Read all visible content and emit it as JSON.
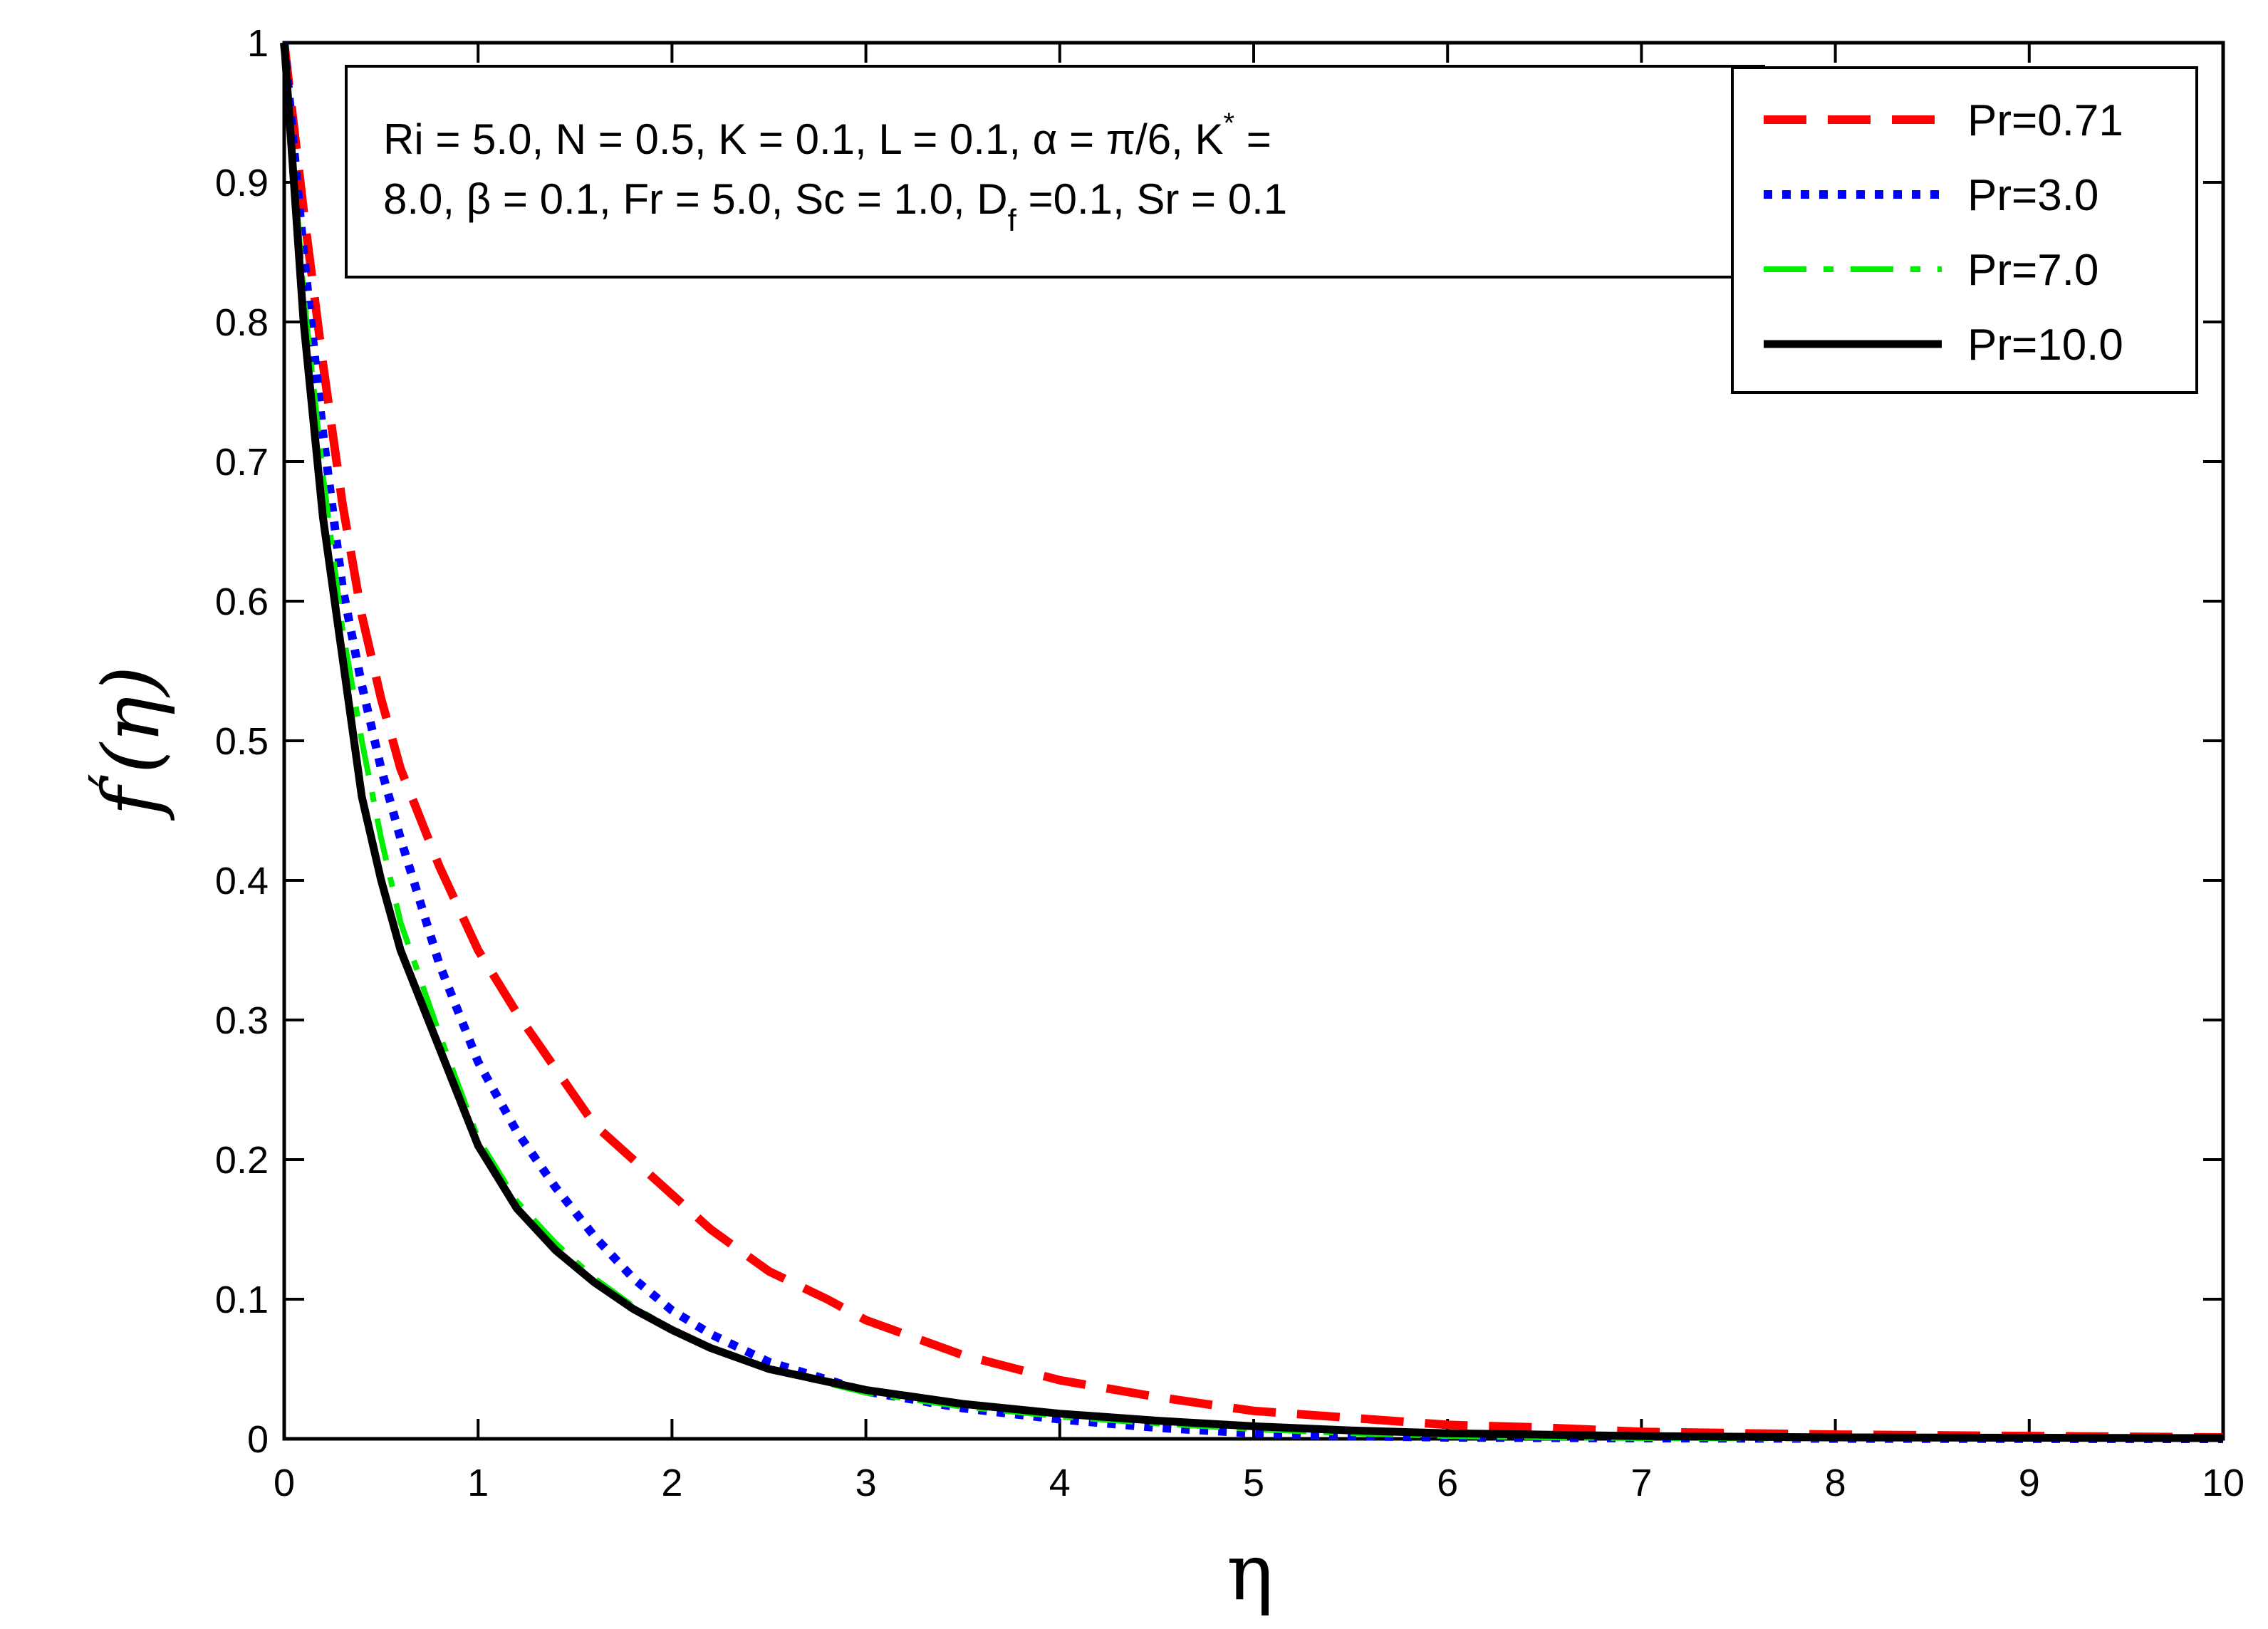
{
  "chart_data": {
    "type": "line",
    "title": "",
    "xlabel": "η",
    "ylabel_main": "f",
    "ylabel_prime": "′",
    "ylabel_arg": "(η)",
    "xlim": [
      0,
      10
    ],
    "ylim": [
      0,
      1
    ],
    "x_ticks": [
      0,
      1,
      2,
      3,
      4,
      5,
      6,
      7,
      8,
      9,
      10
    ],
    "x_tick_labels": [
      "0",
      "1",
      "2",
      "3",
      "4",
      "5",
      "6",
      "7",
      "8",
      "9",
      "10"
    ],
    "y_ticks": [
      0,
      0.1,
      0.2,
      0.3,
      0.4,
      0.5,
      0.6,
      0.7,
      0.8,
      0.9,
      1
    ],
    "y_tick_labels": [
      "0",
      "0.1",
      "0.2",
      "0.3",
      "0.4",
      "0.5",
      "0.6",
      "0.7",
      "0.8",
      "0.9",
      "1"
    ],
    "grid": false,
    "legend_position": "top-right",
    "annotation": {
      "line1": "Ri = 5.0, N = 0.5, K = 0.1, L = 0.1, α = π/6, K",
      "line1_sup": "*",
      "line1_end": " =",
      "line2": "8.0, β = 0.1, Fr = 5.0, Sc = 1.0, D",
      "line2_sub": "f",
      "line2_end": " =0.1, Sr = 0.1"
    },
    "series": [
      {
        "name": "Pr=0.71",
        "color": "#ff0000",
        "style": "dashed",
        "x": [
          0,
          0.1,
          0.2,
          0.3,
          0.4,
          0.5,
          0.6,
          0.8,
          1.0,
          1.2,
          1.4,
          1.6,
          1.8,
          2.0,
          2.2,
          2.5,
          2.8,
          3.0,
          3.5,
          4.0,
          4.5,
          5.0,
          5.5,
          6.0,
          6.5,
          7.0,
          7.5,
          8.0,
          9.0,
          10.0
        ],
        "y": [
          1.0,
          0.88,
          0.77,
          0.67,
          0.59,
          0.53,
          0.48,
          0.41,
          0.35,
          0.305,
          0.265,
          0.225,
          0.2,
          0.175,
          0.15,
          0.12,
          0.1,
          0.085,
          0.06,
          0.042,
          0.03,
          0.02,
          0.015,
          0.01,
          0.008,
          0.005,
          0.004,
          0.003,
          0.002,
          0.001
        ]
      },
      {
        "name": "Pr=3.0",
        "color": "#0000ff",
        "style": "dotted",
        "x": [
          0,
          0.1,
          0.2,
          0.3,
          0.4,
          0.5,
          0.6,
          0.8,
          1.0,
          1.2,
          1.4,
          1.6,
          1.8,
          2.0,
          2.2,
          2.5,
          3.0,
          3.5,
          4.0,
          4.5,
          5.0,
          5.5,
          6.0,
          7.0,
          8.0,
          10.0
        ],
        "y": [
          1.0,
          0.85,
          0.72,
          0.61,
          0.54,
          0.48,
          0.43,
          0.34,
          0.27,
          0.22,
          0.18,
          0.145,
          0.115,
          0.092,
          0.075,
          0.055,
          0.034,
          0.022,
          0.014,
          0.008,
          0.004,
          0.002,
          0.001,
          0.0005,
          0.0002,
          0.0
        ]
      },
      {
        "name": "Pr=7.0",
        "color": "#00ee00",
        "style": "dashdot",
        "x": [
          0,
          0.1,
          0.2,
          0.3,
          0.4,
          0.5,
          0.6,
          0.8,
          1.0,
          1.2,
          1.4,
          1.6,
          1.8,
          2.0,
          2.2,
          2.5,
          3.0,
          3.5,
          4.0,
          4.5,
          5.0,
          5.5,
          6.0,
          6.5,
          7.0,
          8.0,
          10.0
        ],
        "y": [
          1.0,
          0.82,
          0.69,
          0.58,
          0.5,
          0.43,
          0.37,
          0.29,
          0.215,
          0.17,
          0.14,
          0.115,
          0.095,
          0.078,
          0.065,
          0.05,
          0.033,
          0.023,
          0.016,
          0.011,
          0.007,
          0.004,
          0.002,
          0.001,
          0.0005,
          0.0002,
          0.0
        ]
      },
      {
        "name": "Pr=10.0",
        "color": "#000000",
        "style": "solid",
        "x": [
          0,
          0.1,
          0.2,
          0.3,
          0.4,
          0.5,
          0.6,
          0.8,
          1.0,
          1.2,
          1.4,
          1.6,
          1.8,
          2.0,
          2.2,
          2.5,
          3.0,
          3.5,
          4.0,
          4.5,
          5.0,
          5.5,
          6.0,
          7.0,
          8.0,
          10.0
        ],
        "y": [
          1.0,
          0.8,
          0.66,
          0.56,
          0.46,
          0.4,
          0.35,
          0.28,
          0.21,
          0.165,
          0.135,
          0.112,
          0.093,
          0.078,
          0.065,
          0.05,
          0.035,
          0.025,
          0.018,
          0.013,
          0.009,
          0.006,
          0.004,
          0.002,
          0.001,
          0.0005
        ]
      }
    ]
  }
}
